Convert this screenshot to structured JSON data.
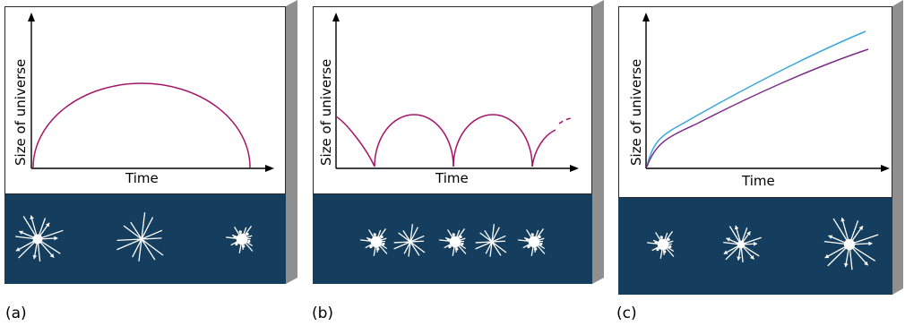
{
  "colors": {
    "scene_bg": "#153e5e",
    "curve": "#a4156a",
    "curve_fast": "#3aa6dc",
    "curve_slow": "#7a2c86",
    "border": "#2a2a2a",
    "side": "#8f8f8f",
    "star": "#ffffff"
  },
  "panels": [
    {
      "caption": "(a)",
      "xlabel": "Time",
      "ylabel": "Size of universe",
      "model": "expands then recollapses (single arch)",
      "scene": [
        "exploding-star",
        "static-star",
        "burst"
      ]
    },
    {
      "caption": "(b)",
      "xlabel": "Time",
      "ylabel": "Size of universe",
      "model": "oscillating (repeated arches)",
      "scene": [
        "burst",
        "static-star",
        "burst",
        "static-star",
        "burst"
      ]
    },
    {
      "caption": "(c)",
      "xlabel": "Time",
      "ylabel": "Size of universe",
      "model": "expands forever (two rising curves)",
      "scene": [
        "burst",
        "exploding-star",
        "exploding-star"
      ]
    }
  ]
}
